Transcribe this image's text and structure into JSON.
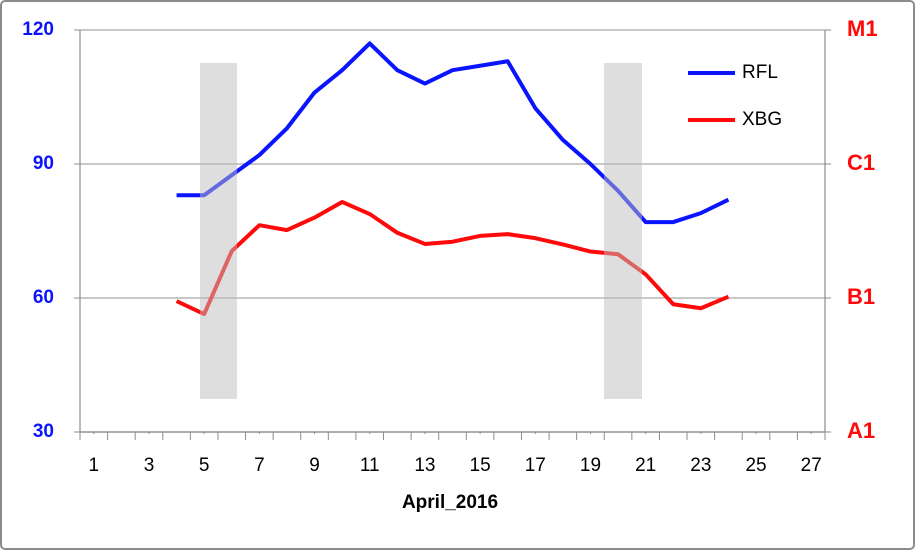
{
  "chart_data": {
    "type": "line",
    "x_label": "April_2016",
    "x": [
      4,
      5,
      6,
      7,
      8,
      9,
      10,
      11,
      12,
      13,
      14,
      15,
      16,
      17,
      18,
      19,
      20,
      21,
      22,
      23,
      24
    ],
    "series": [
      {
        "name": "RFL",
        "color": "#0a14ff",
        "values": [
          83,
          83,
          87.5,
          92,
          98,
          106,
          111,
          117,
          111,
          108,
          111,
          112,
          113,
          102.5,
          95.4,
          90,
          84,
          77,
          77,
          79,
          82
        ]
      },
      {
        "name": "XBG",
        "color": "#ff0a0a",
        "axis": "y2",
        "values": [
          59.3,
          56.4,
          70.5,
          76.3,
          75.2,
          78,
          81.5,
          78.8,
          74.6,
          72.1,
          72.6,
          73.9,
          74.3,
          73.4,
          72,
          70.4,
          69.8,
          65.3,
          58.6,
          57.7,
          60.3
        ]
      }
    ],
    "xlim": [
      0.5,
      27.5
    ],
    "xticks": [
      1,
      3,
      5,
      7,
      9,
      11,
      13,
      15,
      17,
      19,
      21,
      23,
      25,
      27
    ],
    "ylim": [
      30,
      120
    ],
    "yticks": [
      30,
      60,
      90,
      120
    ],
    "y2lim": [
      30,
      120
    ],
    "y2ticks": [
      {
        "value": 30,
        "label": "A1"
      },
      {
        "value": 60,
        "label": "B1"
      },
      {
        "value": 90,
        "label": "C1"
      },
      {
        "value": 120,
        "label": "M1"
      }
    ],
    "grid": true,
    "legend": "upper right"
  }
}
